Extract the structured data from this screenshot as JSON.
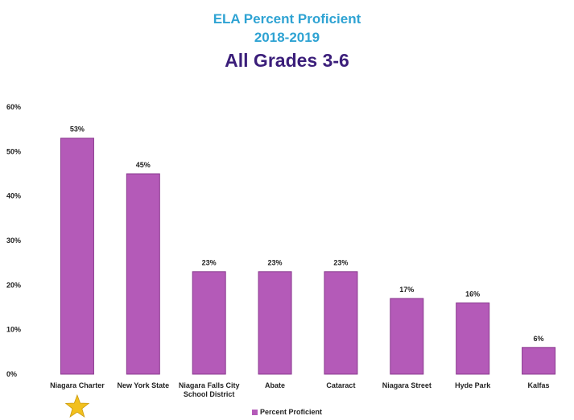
{
  "chart_data": {
    "type": "bar",
    "title": "ELA Percent Proficient",
    "subtitle": "2018-2019",
    "heading": "All Grades 3-6",
    "categories": [
      "Niagara Charter",
      "New York State",
      "Niagara Falls City School District",
      "Abate",
      "Cataract",
      "Niagara Street",
      "Hyde Park",
      "Kalfas"
    ],
    "category_lines": [
      [
        "Niagara Charter"
      ],
      [
        "New York State"
      ],
      [
        "Niagara Falls City",
        "School District"
      ],
      [
        "Abate"
      ],
      [
        "Cataract"
      ],
      [
        "Niagara Street"
      ],
      [
        "Hyde Park"
      ],
      [
        "Kalfas"
      ]
    ],
    "series": [
      {
        "name": "Percent Proficient",
        "values": [
          53,
          45,
          23,
          23,
          23,
          17,
          16,
          6
        ]
      }
    ],
    "data_labels": [
      "53%",
      "45%",
      "23%",
      "23%",
      "23%",
      "17%",
      "16%",
      "6%"
    ],
    "y_ticks": [
      0,
      10,
      20,
      30,
      40,
      50,
      60
    ],
    "y_tick_labels": [
      "0%",
      "10%",
      "20%",
      "30%",
      "40%",
      "50%",
      "60%"
    ],
    "ylim": [
      0,
      60
    ],
    "grid": false,
    "legend_position": "bottom",
    "bar_color": "#b45ab8",
    "bar_stroke": "#8a3a8f",
    "title_color": "#2fa3d3",
    "heading_color": "#3b1e7a",
    "star_icon": "star-icon",
    "star_color": "#f2c01e"
  }
}
